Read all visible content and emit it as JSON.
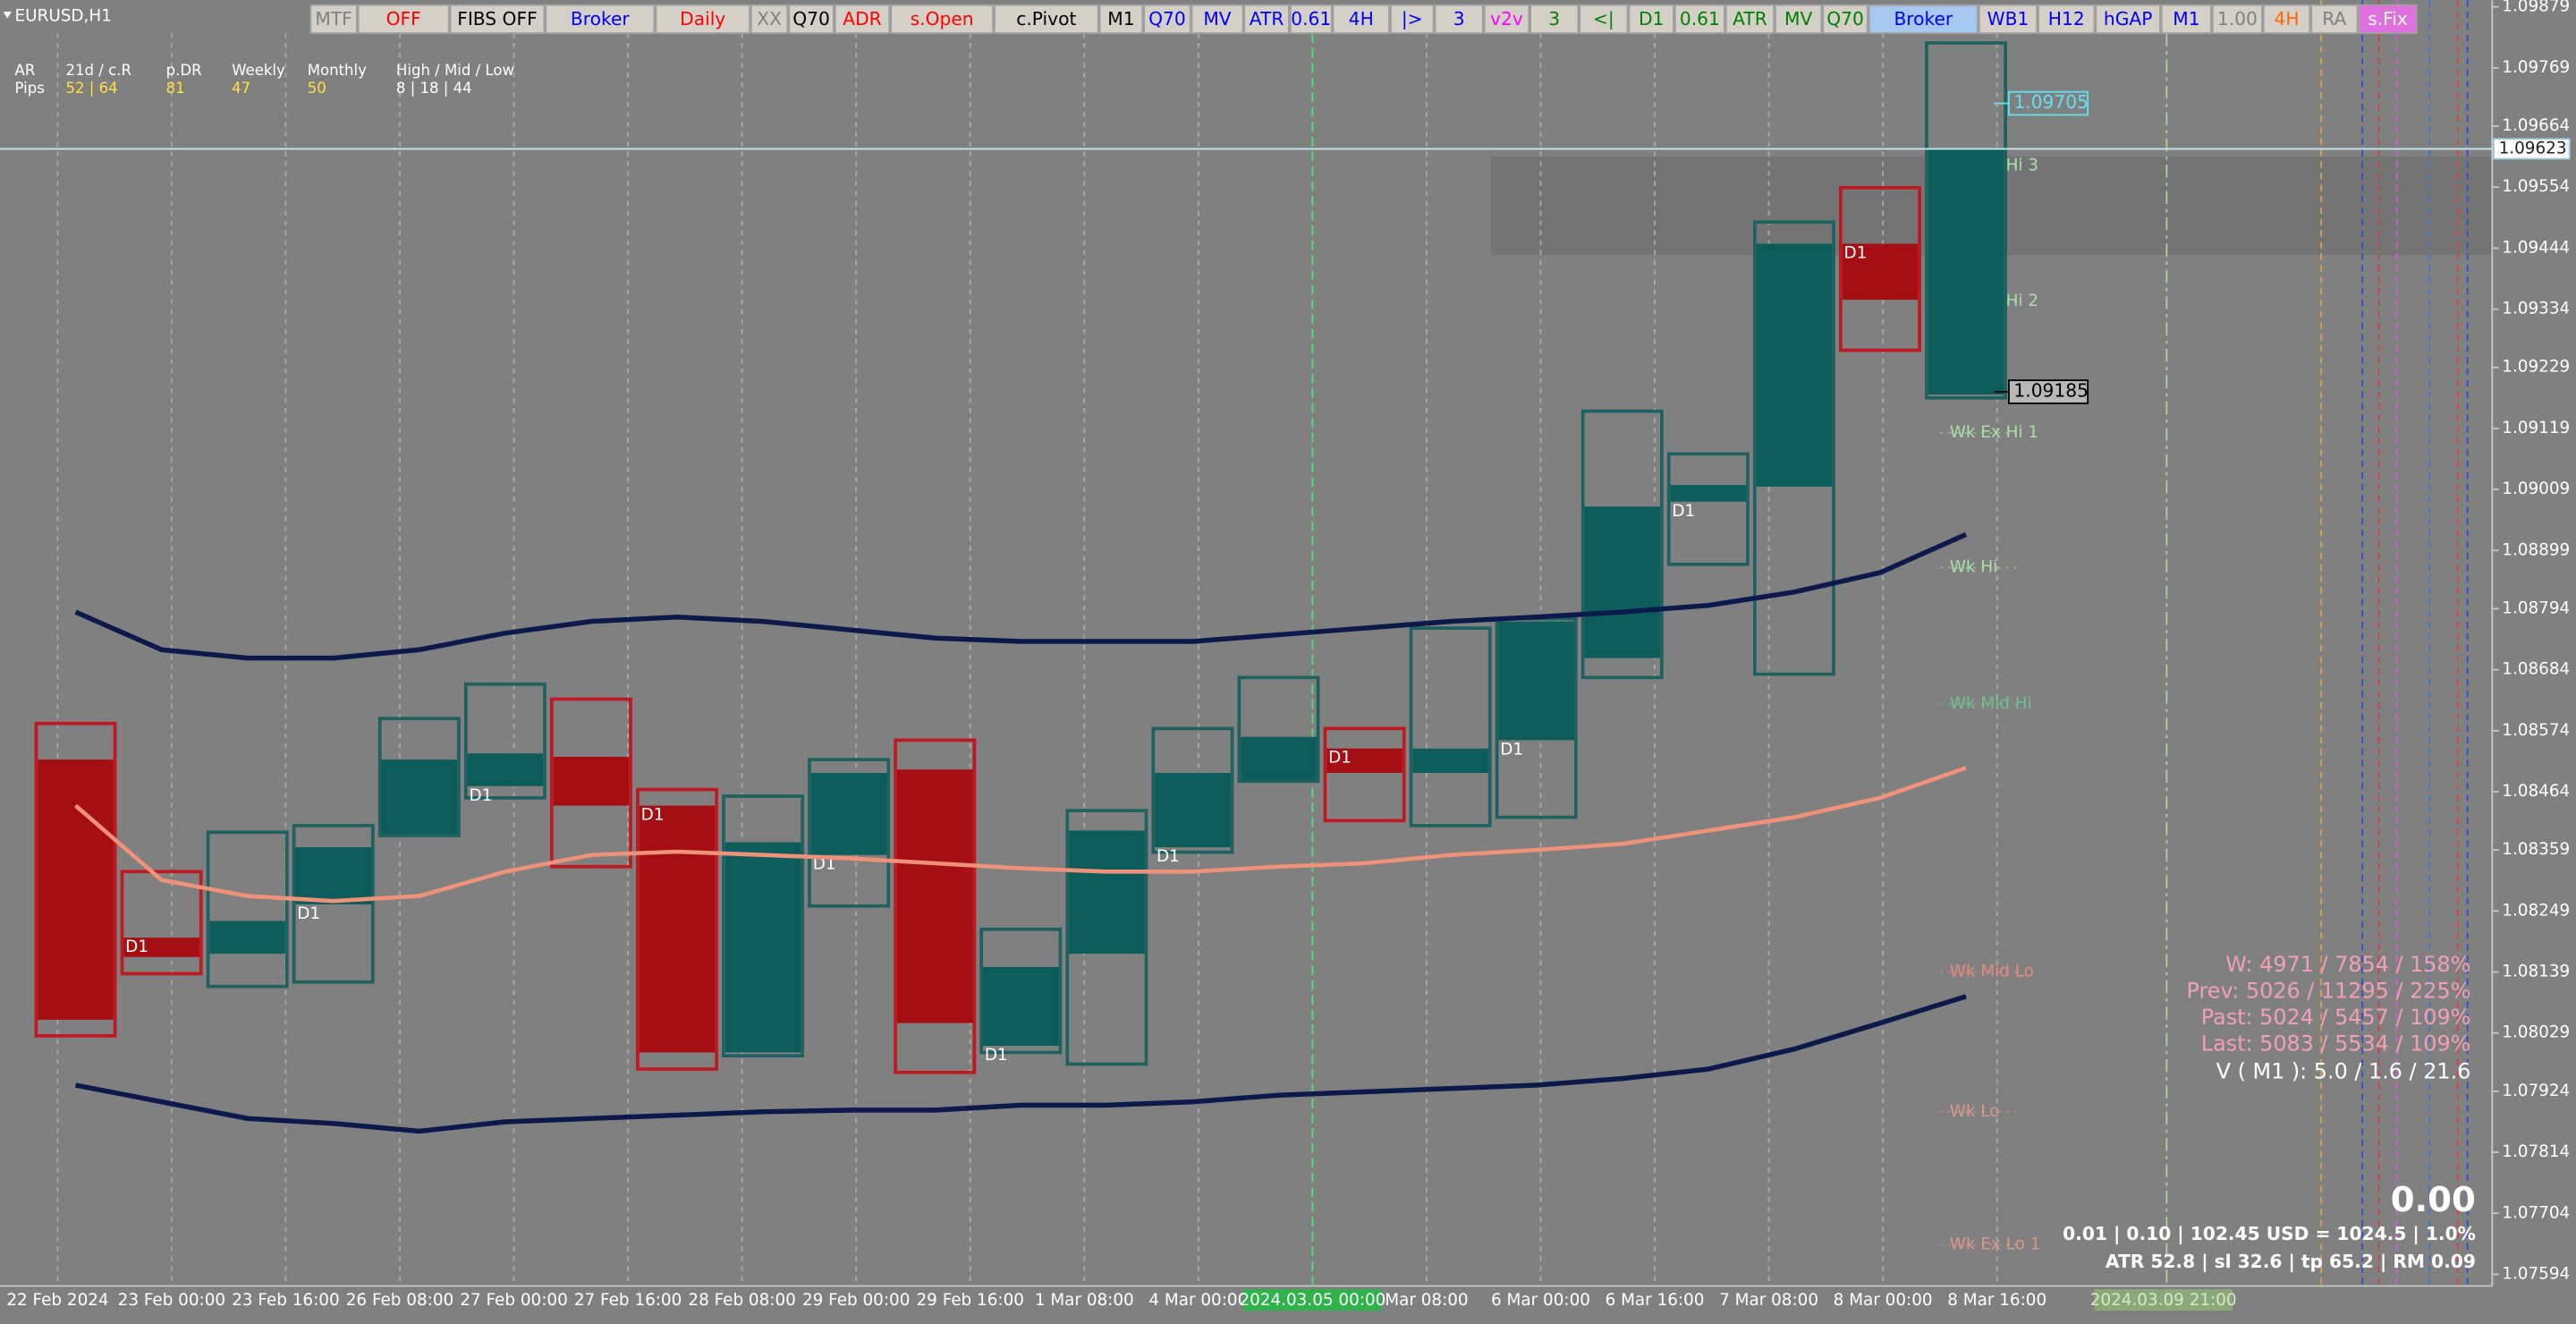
{
  "window": {
    "title": "EURUSD,H1"
  },
  "toolbar": [
    {
      "label": "MTF",
      "color": "#808080"
    },
    {
      "label": "OFF",
      "color": "#ff0000"
    },
    {
      "label": "FIBS OFF",
      "color": "#000000"
    },
    {
      "label": "Broker",
      "color": "#0000ff"
    },
    {
      "label": "Daily",
      "color": "#ff0000"
    },
    {
      "label": "XX",
      "color": "#808080"
    },
    {
      "label": "Q70",
      "color": "#000000"
    },
    {
      "label": "ADR",
      "color": "#ff0000"
    },
    {
      "label": "s.Open",
      "color": "#ff0000"
    },
    {
      "label": "c.Pivot",
      "color": "#000000"
    },
    {
      "label": "M1",
      "color": "#000000"
    },
    {
      "label": "Q70",
      "color": "#0000ff"
    },
    {
      "label": "MV",
      "color": "#0000ff"
    },
    {
      "label": "ATR",
      "color": "#0000ff"
    },
    {
      "label": "0.61",
      "color": "#0000ff"
    },
    {
      "label": "4H",
      "color": "#0000ff"
    },
    {
      "label": "|>",
      "color": "#0000ff"
    },
    {
      "label": "3",
      "color": "#0000ff"
    },
    {
      "label": "v2v",
      "color": "#ff00ff"
    },
    {
      "label": "3",
      "color": "#008000"
    },
    {
      "label": "<|",
      "color": "#008000"
    },
    {
      "label": "D1",
      "color": "#008000"
    },
    {
      "label": "0.61",
      "color": "#008000"
    },
    {
      "label": "ATR",
      "color": "#008000"
    },
    {
      "label": "MV",
      "color": "#008000"
    },
    {
      "label": "Q70",
      "color": "#008000"
    },
    {
      "label": "Broker",
      "color": "#0000ff",
      "background": "#a6c8f0"
    },
    {
      "label": "WB1",
      "color": "#0000ff"
    },
    {
      "label": "H12",
      "color": "#0000ff"
    },
    {
      "label": "hGAP",
      "color": "#0000ff"
    },
    {
      "label": "M1",
      "color": "#0000ff"
    },
    {
      "label": "1.00",
      "color": "#808080"
    },
    {
      "label": "4H",
      "color": "#ff6600"
    },
    {
      "label": "RA",
      "color": "#808080"
    },
    {
      "label": "s.Fix",
      "color": "#ffffff",
      "background": "#e070e0"
    }
  ],
  "info_panel": {
    "row_labels": [
      "AR",
      "Pips"
    ],
    "columns": [
      {
        "header": "21d / c.R",
        "value": "52 | 64"
      },
      {
        "header": "p.DR",
        "value": 81
      },
      {
        "header": "Weekly",
        "value": 47
      },
      {
        "header": "Monthly",
        "value": 50
      },
      {
        "header": "High / Mid / Low",
        "value": "8 | 18 | 44"
      }
    ]
  },
  "price_axis": {
    "ylim": [
      1.07573,
      1.09891
    ],
    "yticks": [
      1.09879,
      1.09769,
      1.09664,
      1.09554,
      1.09444,
      1.09334,
      1.09229,
      1.09119,
      1.09009,
      1.08899,
      1.08794,
      1.08684,
      1.08574,
      1.08464,
      1.08359,
      1.08249,
      1.08139,
      1.08029,
      1.07924,
      1.07814,
      1.07704,
      1.07594
    ],
    "current_price": 1.09623,
    "tags": [
      1.09705,
      1.09185
    ]
  },
  "time_axis": {
    "labels": [
      "22 Feb 2024",
      "23 Feb 00:00",
      "23 Feb 16:00",
      "26 Feb 08:00",
      "27 Feb 00:00",
      "27 Feb 16:00",
      "28 Feb 08:00",
      "29 Feb 00:00",
      "29 Feb 16:00",
      "1 Mar 08:00",
      "4 Mar 00:00",
      "2024.03.05 00:00",
      "Mar 08:00",
      "6 Mar 00:00",
      "6 Mar 16:00",
      "7 Mar 08:00",
      "8 Mar 00:00",
      "8 Mar 16:00"
    ],
    "cursor_label": "2024.03.09 21:00"
  },
  "box_label": "D1",
  "boxes": [
    {
      "open": 1.08522,
      "high": 1.08587,
      "low": 1.08024,
      "close": 1.08053
    },
    {
      "open": 1.08201,
      "high": 1.0832,
      "low": 1.08136,
      "close": 1.08166
    },
    {
      "open": 1.08172,
      "high": 1.08391,
      "low": 1.08113,
      "close": 1.08231
    },
    {
      "open": 1.08261,
      "high": 1.08403,
      "low": 1.08121,
      "close": 1.08364
    },
    {
      "open": 1.08385,
      "high": 1.08596,
      "low": 1.08385,
      "close": 1.08522
    },
    {
      "open": 1.08474,
      "high": 1.08658,
      "low": 1.08453,
      "close": 1.08533
    },
    {
      "open": 1.08527,
      "high": 1.08631,
      "low": 1.08329,
      "close": 1.08439
    },
    {
      "open": 1.08439,
      "high": 1.08468,
      "low": 1.07964,
      "close": 1.07994
    },
    {
      "open": 1.07994,
      "high": 1.08456,
      "low": 1.07988,
      "close": 1.08373
    },
    {
      "open": 1.0835,
      "high": 1.08522,
      "low": 1.08258,
      "close": 1.08498
    },
    {
      "open": 1.08504,
      "high": 1.08557,
      "low": 1.07958,
      "close": 1.08047
    },
    {
      "open": 1.08006,
      "high": 1.08216,
      "low": 1.07994,
      "close": 1.08148
    },
    {
      "open": 1.08172,
      "high": 1.0843,
      "low": 1.07973,
      "close": 1.08394
    },
    {
      "open": 1.08364,
      "high": 1.08578,
      "low": 1.08355,
      "close": 1.08498
    },
    {
      "open": 1.08483,
      "high": 1.0867,
      "low": 1.08483,
      "close": 1.08563
    },
    {
      "open": 1.08542,
      "high": 1.08578,
      "low": 1.08412,
      "close": 1.08498
    },
    {
      "open": 1.08498,
      "high": 1.08759,
      "low": 1.08403,
      "close": 1.08542
    },
    {
      "open": 1.08557,
      "high": 1.08776,
      "low": 1.08418,
      "close": 1.08771
    },
    {
      "open": 1.08705,
      "high": 1.0915,
      "low": 1.0867,
      "close": 1.08978
    },
    {
      "open": 1.08987,
      "high": 1.09073,
      "low": 1.08874,
      "close": 1.09017
    },
    {
      "open": 1.09014,
      "high": 1.09491,
      "low": 1.08676,
      "close": 1.09452
    },
    {
      "open": 1.09452,
      "high": 1.09553,
      "low": 1.0926,
      "close": 1.09351
    },
    {
      "open": 1.0918,
      "high": 1.09814,
      "low": 1.09174,
      "close": 1.09623
    }
  ],
  "lines": [
    {
      "color": "#0b1a4a",
      "values": [
        1.08788,
        1.0872,
        1.08705,
        1.08705,
        1.0872,
        1.0875,
        1.08771,
        1.08779,
        1.08771,
        1.08756,
        1.08741,
        1.08735,
        1.08735,
        1.08735,
        1.08747,
        1.08759,
        1.08771,
        1.08779,
        1.08788,
        1.088,
        1.08824,
        1.08859,
        1.08928
      ]
    },
    {
      "color": "#f0927a",
      "values": [
        1.08439,
        1.08305,
        1.08276,
        1.08267,
        1.08276,
        1.0832,
        1.0835,
        1.08356,
        1.0835,
        1.08344,
        1.08335,
        1.08326,
        1.0832,
        1.0832,
        1.08329,
        1.08335,
        1.0835,
        1.08359,
        1.0837,
        1.08394,
        1.08418,
        1.08453,
        1.08507
      ]
    },
    {
      "color": "#0b1a4a",
      "values": [
        1.07935,
        1.07905,
        1.07875,
        1.07866,
        1.07852,
        1.07869,
        1.07875,
        1.07881,
        1.07887,
        1.0789,
        1.0789,
        1.07899,
        1.07899,
        1.07905,
        1.07917,
        1.07923,
        1.07929,
        1.07935,
        1.07947,
        1.07964,
        1.08,
        1.08047,
        1.08095
      ]
    }
  ],
  "levels": [
    {
      "label": "Wk Ex Hi 3",
      "value": 1.09592,
      "color": "#a8e0a8"
    },
    {
      "label": "Wk Ex Hi 2",
      "value": 1.09348,
      "color": "#a8e0a8"
    },
    {
      "label": "Wk Ex Hi 1",
      "value": 1.09111,
      "color": "#a8e0a8"
    },
    {
      "label": "Wk Hi",
      "value": 1.08868,
      "color": "#a8e0a8"
    },
    {
      "label": "Wk Mid Hi",
      "value": 1.08622,
      "color": "#70c090"
    },
    {
      "label": "Wk Mid Lo",
      "value": 1.08139,
      "color": "#e88a7c"
    },
    {
      "label": "Wk Lo",
      "value": 1.07887,
      "color": "#d8988a"
    },
    {
      "label": "Wk Ex Lo 1",
      "value": 1.07647,
      "color": "#d8988a"
    }
  ],
  "stats": {
    "volume_lines": [
      "W: 4971 / 7854 / 158%",
      "Prev: 5026 / 11295 / 225%",
      "Past: 5024 / 5457 / 109%",
      "Last: 5083 / 5534 / 109%"
    ],
    "v_line": "V ( M1 ): 5.0 / 1.6 / 21.6",
    "big_value": "0.00",
    "risk_line": "0.01  |  0.10  |  102.45 USD = 1024.5  |  1.0%",
    "atr_line": "ATR 52.8  |  sl 32.6  |  tp 65.2  |  RM 0.09"
  }
}
